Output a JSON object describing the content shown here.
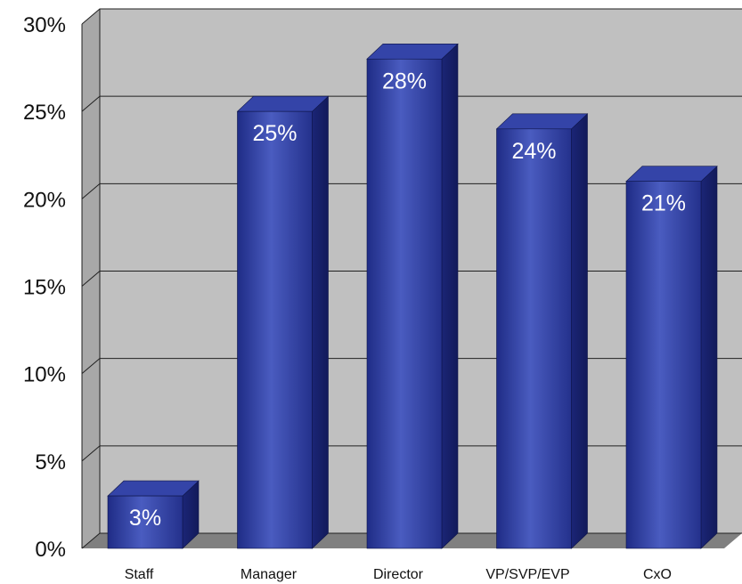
{
  "chart_data": {
    "type": "bar",
    "categories": [
      "Staff",
      "Manager",
      "Director",
      "VP/SVP/EVP",
      "CxO"
    ],
    "values": [
      3,
      25,
      28,
      24,
      21
    ],
    "data_labels": [
      "3%",
      "25%",
      "28%",
      "24%",
      "21%"
    ],
    "y_ticks": [
      0,
      5,
      10,
      15,
      20,
      25,
      30
    ],
    "y_tick_labels": [
      "0%",
      "5%",
      "10%",
      "15%",
      "20%",
      "25%",
      "30%"
    ],
    "ylim": [
      0,
      30
    ],
    "title": "",
    "xlabel": "",
    "ylabel": "",
    "grid": true,
    "legend": "none",
    "style": "3d-column",
    "colors": {
      "bar_front": "#2a3a9a",
      "bar_front_highlight": "#4a5cc0",
      "bar_side": "#1a2470",
      "bar_top": "#3444a8",
      "wall": "#c0c0c0",
      "floor": "#808080",
      "gridline": "#202020"
    }
  }
}
